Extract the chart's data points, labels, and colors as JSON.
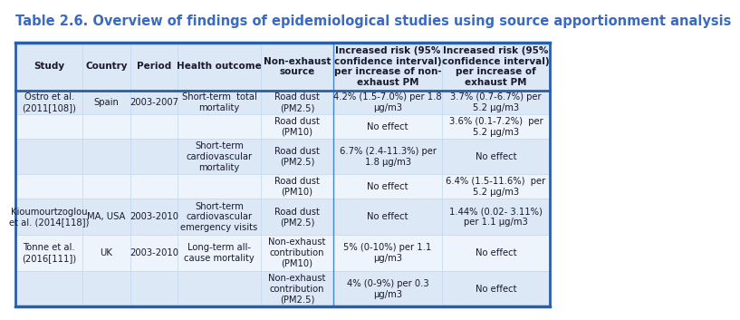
{
  "title": "Table 2.6. Overview of findings of epidemiological studies using source apportionment analysis",
  "title_color": "#3a6bbf",
  "title_fontsize": 10.5,
  "col_headers": [
    "Study",
    "Country",
    "Period",
    "Health outcome",
    "Non-exhaust\nsource",
    "Increased risk (95%\nconfidence interval)\nper increase of non-\nexhaust PM",
    "Increased risk (95%\nconfidence interval)\nper increase of\nexhaust PM"
  ],
  "rows": [
    [
      "Ostro et al.\n(2011[108])",
      "Spain",
      "2003-2007",
      "Short-term  total\nmortality",
      "Road dust\n(PM2.5)",
      "4.2% (1.5-7.0%) per 1.8\nμg/m3",
      "3.7% (0.7-6.7%) per\n5.2 μg/m3"
    ],
    [
      "",
      "",
      "",
      "",
      "Road dust\n(PM10)",
      "No effect",
      "3.6% (0.1-7.2%)  per\n5.2 μg/m3"
    ],
    [
      "",
      "",
      "",
      "Short-term\ncardiovascular\nmortality",
      "Road dust\n(PM2.5)",
      "6.7% (2.4-11.3%) per\n1.8 μg/m3",
      "No effect"
    ],
    [
      "",
      "",
      "",
      "",
      "Road dust\n(PM10)",
      "No effect",
      "6.4% (1.5-11.6%)  per\n5.2 μg/m3"
    ],
    [
      "Kioumourtzoglou\net al. (2014[118])",
      "MA, USA",
      "2003-2010",
      "Short-term\ncardiovascular\nemergency visits",
      "Road dust\n(PM2.5)",
      "No effect",
      "1.44% (0.02- 3.11%)\nper 1.1 μg/m3"
    ],
    [
      "Tonne et al.\n(2016[111])",
      "UK",
      "2003-2010",
      "Long-term all-\ncause mortality",
      "Non-exhaust\ncontribution\n(PM10)",
      "5% (0-10%) per 1.1\nμg/m3",
      "No effect"
    ],
    [
      "",
      "",
      "",
      "",
      "Non-exhaust\ncontribution\n(PM2.5)",
      "4% (0-9%) per 0.3\nμg/m3",
      "No effect"
    ]
  ],
  "row_shading": [
    "light",
    "white",
    "light",
    "white",
    "light",
    "white",
    "light"
  ],
  "col_widths_rel": [
    1.05,
    0.75,
    0.75,
    1.3,
    1.15,
    1.7,
    1.7
  ],
  "border_color": "#4a86c8",
  "thick_line_color": "#2a5fa8",
  "grid_color": "#c5d9f0",
  "bg_light": "#dce8f5",
  "bg_white": "#eef4fb",
  "header_bg": "#dce8f5",
  "text_color": "#1a1a2e",
  "fontsize": 7.2,
  "header_fontsize": 7.5
}
